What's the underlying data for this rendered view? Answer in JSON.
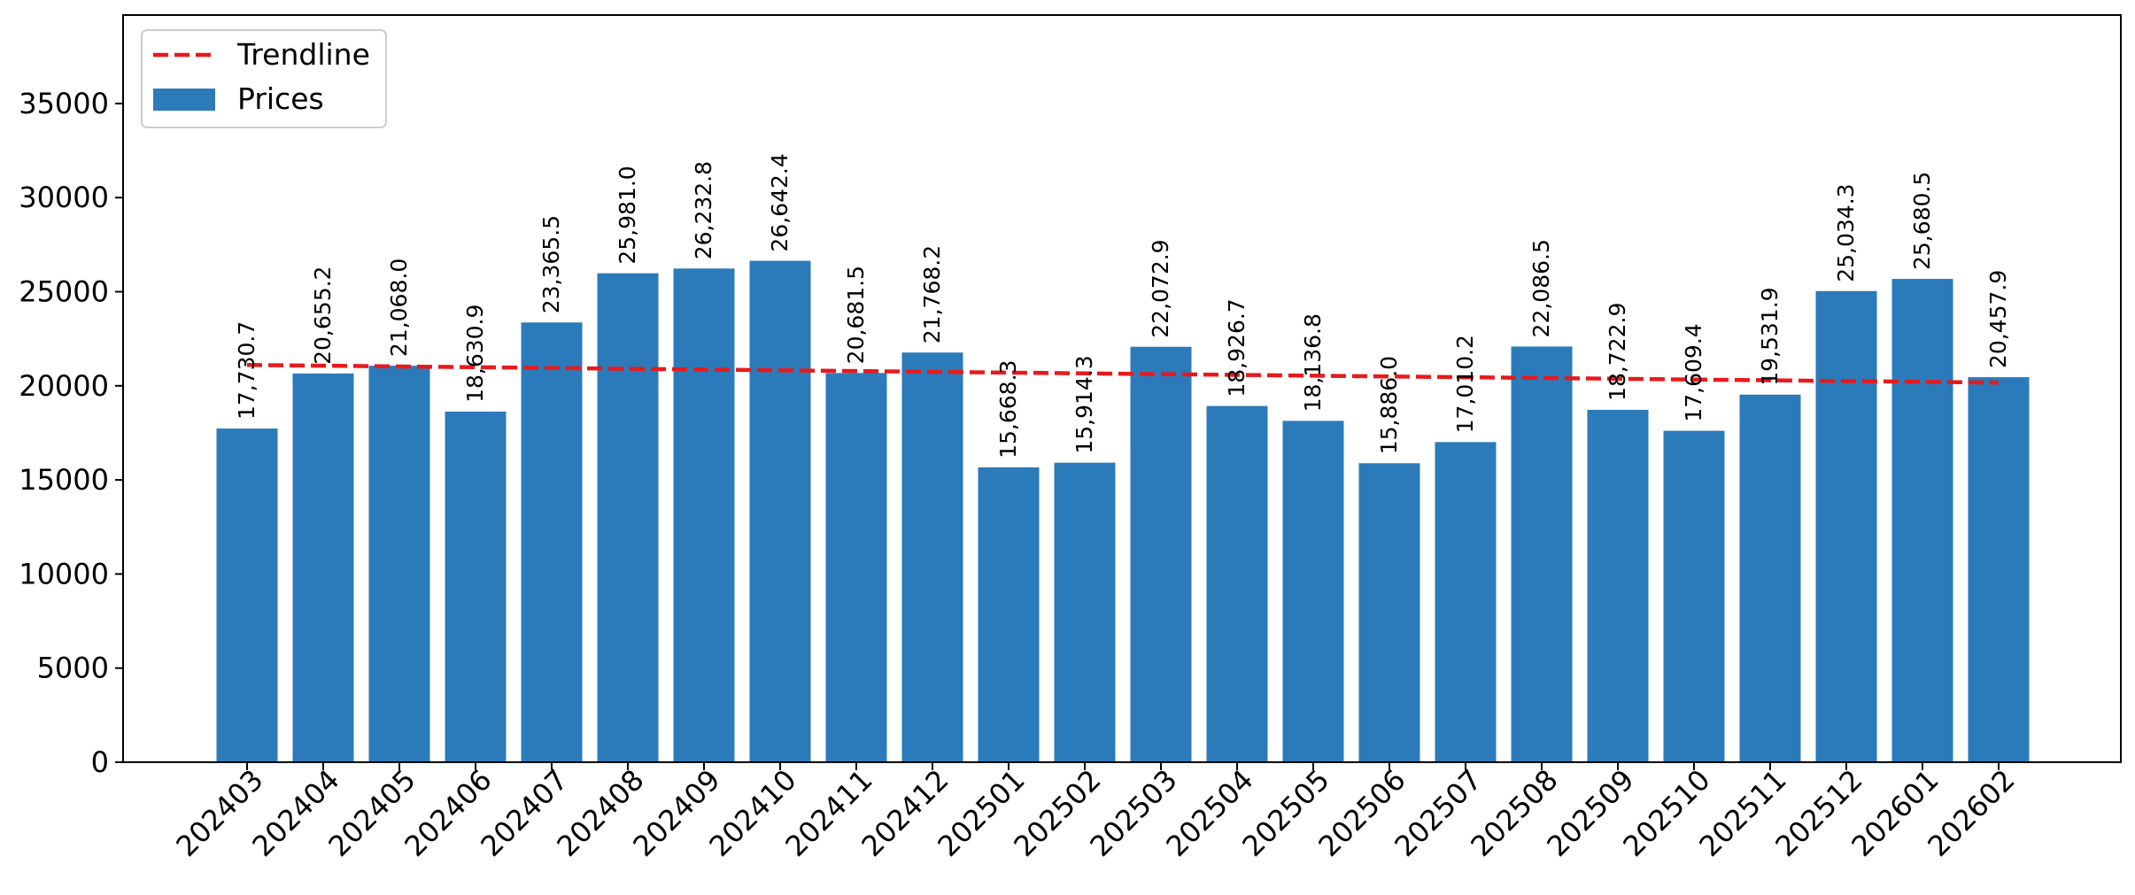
{
  "chart_data": {
    "type": "bar",
    "categories": [
      "202403",
      "202404",
      "202405",
      "202406",
      "202407",
      "202408",
      "202409",
      "202410",
      "202411",
      "202412",
      "202501",
      "202502",
      "202503",
      "202504",
      "202505",
      "202506",
      "202507",
      "202508",
      "202509",
      "202510",
      "202511",
      "202512",
      "202601",
      "202602"
    ],
    "series": [
      {
        "name": "Prices",
        "color": "#2b7bba",
        "values": [
          17730.7,
          20655.2,
          21068.0,
          18630.9,
          23365.5,
          25981.0,
          26232.8,
          26642.4,
          20681.5,
          21768.2,
          15668.3,
          15914.3,
          22072.9,
          18926.7,
          18136.8,
          15886.0,
          17010.2,
          22086.5,
          18722.9,
          17609.4,
          19531.9,
          25034.3,
          25680.5,
          20457.9
        ]
      }
    ],
    "data_labels": [
      "17,730.7",
      "20,655.2",
      "21,068.0",
      "18,630.9",
      "23,365.5",
      "25,981.0",
      "26,232.8",
      "26,642.4",
      "20,681.5",
      "21,768.2",
      "15,668.3",
      "15,914.3",
      "22,072.9",
      "18,926.7",
      "18,136.8",
      "15,886.0",
      "17,010.2",
      "22,086.5",
      "18,722.9",
      "17,609.4",
      "19,531.9",
      "25,034.3",
      "25,680.5",
      "20,457.9"
    ],
    "trendline": {
      "name": "Trendline",
      "color": "#e8191b",
      "style": "dashed",
      "start": 21110,
      "end": 20170
    },
    "yticks": [
      0,
      5000,
      10000,
      15000,
      20000,
      25000,
      30000,
      35000
    ],
    "ylim": [
      0,
      39700
    ],
    "legend_position": "top-left",
    "grid": false
  }
}
